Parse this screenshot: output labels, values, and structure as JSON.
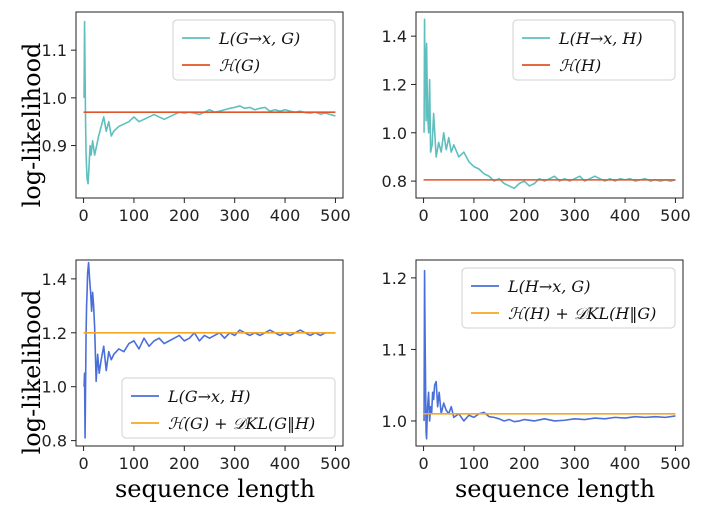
{
  "ylabel": "log-likelihood",
  "xlabel": "sequence length",
  "chart_data": [
    {
      "type": "line",
      "position": "top-left",
      "xlim": [
        -15,
        515
      ],
      "ylim": [
        0.79,
        1.18
      ],
      "xticks": [
        0,
        100,
        200,
        300,
        400,
        500
      ],
      "yticks": [
        0.9,
        1.0,
        1.1
      ],
      "ytick_labels": [
        "0.9",
        "1.0",
        "1.1"
      ],
      "legend_position": "top-right",
      "series": [
        {
          "name": "L(G→x, G)",
          "color": "#5fbfbf",
          "kind": "noisy",
          "x": [
            1,
            2,
            3,
            4,
            5,
            7,
            9,
            11,
            13,
            15,
            18,
            22,
            26,
            30,
            35,
            40,
            45,
            50,
            55,
            60,
            70,
            80,
            90,
            100,
            110,
            120,
            130,
            140,
            150,
            160,
            170,
            180,
            190,
            200,
            210,
            220,
            230,
            240,
            250,
            260,
            270,
            280,
            290,
            300,
            310,
            320,
            330,
            340,
            350,
            360,
            370,
            380,
            390,
            400,
            410,
            420,
            430,
            440,
            450,
            460,
            470,
            480,
            490,
            500
          ],
          "y": [
            1.0,
            1.16,
            1.05,
            0.95,
            0.88,
            0.83,
            0.82,
            0.86,
            0.9,
            0.88,
            0.91,
            0.88,
            0.9,
            0.92,
            0.94,
            0.96,
            0.93,
            0.95,
            0.92,
            0.93,
            0.94,
            0.945,
            0.95,
            0.96,
            0.95,
            0.955,
            0.96,
            0.965,
            0.96,
            0.955,
            0.96,
            0.965,
            0.97,
            0.968,
            0.97,
            0.968,
            0.965,
            0.97,
            0.975,
            0.97,
            0.972,
            0.975,
            0.978,
            0.98,
            0.983,
            0.978,
            0.98,
            0.975,
            0.978,
            0.98,
            0.972,
            0.975,
            0.972,
            0.975,
            0.972,
            0.97,
            0.972,
            0.969,
            0.968,
            0.97,
            0.966,
            0.968,
            0.965,
            0.962
          ]
        },
        {
          "name": "ℋ(G)",
          "color": "#e0552a",
          "kind": "flat",
          "x": [
            0,
            500
          ],
          "y": [
            0.97,
            0.97
          ]
        }
      ]
    },
    {
      "type": "line",
      "position": "top-right",
      "xlim": [
        -15,
        515
      ],
      "ylim": [
        0.73,
        1.5
      ],
      "xticks": [
        0,
        100,
        200,
        300,
        400,
        500
      ],
      "yticks": [
        0.8,
        1.0,
        1.2,
        1.4
      ],
      "ytick_labels": [
        "0.8",
        "1.0",
        "1.2",
        "1.4"
      ],
      "legend_position": "top-right",
      "series": [
        {
          "name": "L(H→x, H)",
          "color": "#5fbfbf",
          "kind": "noisy",
          "x": [
            1,
            2,
            3,
            4,
            5,
            6,
            8,
            10,
            12,
            14,
            17,
            20,
            25,
            30,
            35,
            40,
            45,
            50,
            55,
            60,
            70,
            80,
            90,
            100,
            110,
            120,
            130,
            140,
            150,
            160,
            170,
            180,
            190,
            200,
            210,
            220,
            230,
            240,
            250,
            260,
            270,
            280,
            290,
            300,
            310,
            320,
            330,
            340,
            350,
            360,
            370,
            380,
            390,
            400,
            410,
            420,
            430,
            440,
            450,
            460,
            470,
            480,
            490,
            500
          ],
          "y": [
            1.0,
            1.47,
            1.15,
            1.35,
            1.05,
            1.37,
            1.08,
            1.0,
            1.22,
            0.92,
            0.95,
            1.08,
            0.9,
            0.96,
            0.92,
            1.0,
            0.93,
            0.98,
            0.92,
            0.95,
            0.9,
            0.92,
            0.88,
            0.86,
            0.85,
            0.83,
            0.82,
            0.8,
            0.81,
            0.79,
            0.78,
            0.77,
            0.79,
            0.8,
            0.78,
            0.79,
            0.81,
            0.8,
            0.81,
            0.82,
            0.8,
            0.81,
            0.8,
            0.81,
            0.82,
            0.8,
            0.81,
            0.82,
            0.81,
            0.8,
            0.81,
            0.8,
            0.81,
            0.805,
            0.81,
            0.8,
            0.805,
            0.81,
            0.8,
            0.805,
            0.8,
            0.805,
            0.8,
            0.805
          ]
        },
        {
          "name": "ℋ(H)",
          "color": "#e0552a",
          "kind": "flat",
          "x": [
            0,
            500
          ],
          "y": [
            0.805,
            0.805
          ]
        }
      ]
    },
    {
      "type": "line",
      "position": "bottom-left",
      "xlim": [
        -15,
        515
      ],
      "ylim": [
        0.78,
        1.47
      ],
      "xticks": [
        0,
        100,
        200,
        300,
        400,
        500
      ],
      "yticks": [
        0.8,
        1.0,
        1.2,
        1.4
      ],
      "ytick_labels": [
        "0.8",
        "1.0",
        "1.2",
        "1.4"
      ],
      "legend_position": "bottom-right",
      "series": [
        {
          "name": "L(G→x, H)",
          "color": "#4a6fd8",
          "kind": "noisy",
          "x": [
            1,
            2,
            3,
            4,
            5,
            6,
            7,
            8,
            10,
            12,
            14,
            16,
            18,
            20,
            22,
            25,
            28,
            31,
            35,
            40,
            45,
            50,
            55,
            60,
            70,
            80,
            90,
            100,
            110,
            120,
            130,
            140,
            150,
            160,
            170,
            180,
            190,
            200,
            210,
            220,
            230,
            240,
            250,
            260,
            270,
            280,
            290,
            300,
            310,
            320,
            330,
            340,
            350,
            360,
            370,
            380,
            390,
            400,
            410,
            420,
            430,
            440,
            450,
            460,
            470,
            480,
            490,
            500
          ],
          "y": [
            1.0,
            1.05,
            0.81,
            1.0,
            1.2,
            1.3,
            1.35,
            1.42,
            1.46,
            1.4,
            1.35,
            1.28,
            1.35,
            1.3,
            1.22,
            1.02,
            1.12,
            1.05,
            1.1,
            1.15,
            1.06,
            1.13,
            1.1,
            1.12,
            1.14,
            1.13,
            1.16,
            1.17,
            1.14,
            1.18,
            1.15,
            1.17,
            1.18,
            1.16,
            1.17,
            1.18,
            1.19,
            1.17,
            1.18,
            1.2,
            1.17,
            1.19,
            1.18,
            1.19,
            1.2,
            1.18,
            1.2,
            1.19,
            1.21,
            1.2,
            1.19,
            1.2,
            1.19,
            1.2,
            1.21,
            1.2,
            1.19,
            1.2,
            1.19,
            1.2,
            1.21,
            1.2,
            1.19,
            1.2,
            1.19,
            1.2,
            1.2,
            1.2
          ]
        },
        {
          "name": "ℋ(G) + 𝒟KL(G‖H)",
          "color": "#f5a623",
          "kind": "flat",
          "x": [
            0,
            500
          ],
          "y": [
            1.2,
            1.2
          ]
        }
      ]
    },
    {
      "type": "line",
      "position": "bottom-right",
      "xlim": [
        -15,
        515
      ],
      "ylim": [
        0.965,
        1.225
      ],
      "xticks": [
        0,
        100,
        200,
        300,
        400,
        500
      ],
      "yticks": [
        1.0,
        1.1,
        1.2
      ],
      "ytick_labels": [
        "1.0",
        "1.1",
        "1.2"
      ],
      "legend_position": "top-right",
      "series": [
        {
          "name": "L(H→x, G)",
          "color": "#4a6fd8",
          "kind": "noisy",
          "x": [
            1,
            2,
            3,
            4,
            5,
            6,
            7,
            8,
            9,
            10,
            12,
            14,
            16,
            18,
            20,
            22,
            25,
            28,
            31,
            35,
            40,
            45,
            50,
            55,
            60,
            70,
            80,
            90,
            100,
            110,
            120,
            130,
            140,
            150,
            160,
            170,
            180,
            190,
            200,
            220,
            240,
            260,
            280,
            300,
            320,
            340,
            360,
            380,
            400,
            420,
            440,
            460,
            480,
            500
          ],
          "y": [
            1.0,
            1.21,
            1.12,
            1.05,
            0.985,
            0.975,
            1.0,
            1.02,
            1.03,
            1.04,
            1.0,
            1.02,
            1.01,
            1.04,
            1.03,
            1.05,
            1.055,
            1.02,
            1.04,
            1.01,
            1.025,
            1.015,
            1.01,
            1.02,
            1.005,
            1.01,
            1.0,
            1.008,
            1.005,
            1.01,
            1.012,
            1.006,
            1.005,
            1.003,
            1.0,
            1.002,
            0.999,
            1.0,
            1.002,
            1.0,
            1.003,
            1.0,
            1.001,
            1.003,
            1.002,
            1.004,
            1.003,
            1.005,
            1.004,
            1.006,
            1.005,
            1.006,
            1.005,
            1.007
          ]
        },
        {
          "name": "ℋ(H) + 𝒟KL(H‖G)",
          "color": "#f5a623",
          "kind": "flat",
          "x": [
            0,
            500
          ],
          "y": [
            1.01,
            1.01
          ]
        }
      ]
    }
  ]
}
